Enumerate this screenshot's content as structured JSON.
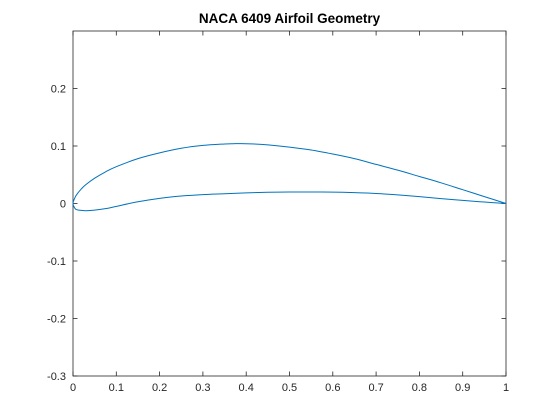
{
  "chart_data": {
    "type": "line",
    "title": "NACA 6409 Airfoil Geometry",
    "xlabel": "",
    "ylabel": "",
    "xlim": [
      0,
      1
    ],
    "ylim": [
      -0.3,
      0.3
    ],
    "x_ticks": [
      0,
      0.1,
      0.2,
      0.3,
      0.4,
      0.5,
      0.6,
      0.7,
      0.8,
      0.9,
      1
    ],
    "x_tick_labels": [
      "0",
      "0.1",
      "0.2",
      "0.3",
      "0.4",
      "0.5",
      "0.6",
      "0.7",
      "0.8",
      "0.9",
      "1"
    ],
    "y_ticks": [
      -0.3,
      -0.2,
      -0.1,
      0,
      0.1,
      0.2
    ],
    "y_tick_labels": [
      "-0.3",
      "-0.2",
      "-0.1",
      "0",
      "0.1",
      "0.2"
    ],
    "grid": false,
    "line_color": "#0072bd",
    "series": [
      {
        "x": [
          1.0,
          0.95,
          0.9,
          0.85,
          0.8,
          0.75,
          0.7,
          0.65,
          0.6,
          0.55,
          0.5,
          0.45,
          0.4,
          0.37,
          0.35,
          0.3,
          0.25,
          0.2,
          0.15,
          0.1,
          0.075,
          0.05,
          0.03,
          0.02,
          0.01,
          0.005,
          0.0,
          0.005,
          0.01,
          0.02,
          0.03,
          0.05,
          0.075,
          0.1,
          0.15,
          0.2,
          0.25,
          0.3,
          0.35,
          0.4,
          0.45,
          0.5,
          0.55,
          0.6,
          0.65,
          0.7,
          0.75,
          0.8,
          0.85,
          0.9,
          0.95,
          1.0
        ],
        "y": [
          0.0,
          0.012,
          0.024,
          0.036,
          0.047,
          0.058,
          0.068,
          0.078,
          0.086,
          0.093,
          0.098,
          0.102,
          0.104,
          0.104,
          0.1035,
          0.101,
          0.096,
          0.088,
          0.078,
          0.064,
          0.055,
          0.044,
          0.033,
          0.026,
          0.017,
          0.011,
          0.0,
          -0.009,
          -0.011,
          -0.012,
          -0.0125,
          -0.0115,
          -0.009,
          -0.005,
          0.003,
          0.009,
          0.013,
          0.0155,
          0.017,
          0.0185,
          0.0195,
          0.02,
          0.02,
          0.0198,
          0.019,
          0.0175,
          0.015,
          0.012,
          0.0085,
          0.0055,
          0.0025,
          0.0
        ]
      }
    ]
  }
}
